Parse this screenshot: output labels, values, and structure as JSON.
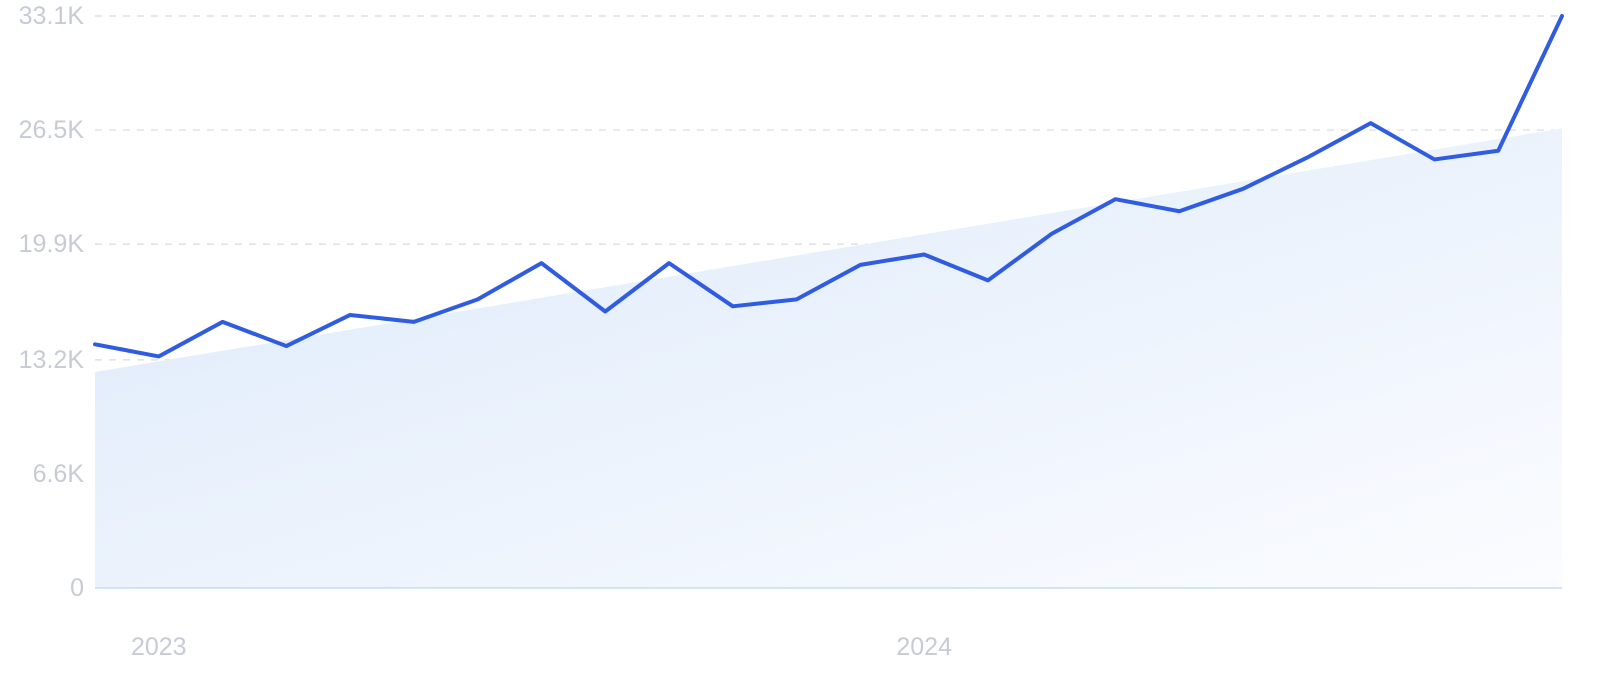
{
  "chart_data": {
    "type": "line",
    "title": "",
    "xlabel": "",
    "ylabel": "",
    "ylim": [
      0,
      33100
    ],
    "yticks": [
      "0",
      "6.6K",
      "13.2K",
      "19.9K",
      "26.5K",
      "33.1K"
    ],
    "ytick_values": [
      0,
      6600,
      13200,
      19900,
      26500,
      33100
    ],
    "xtick_labels": [
      {
        "label": "2023",
        "index": 1
      },
      {
        "label": "2024",
        "index": 13
      }
    ],
    "grid": true,
    "colors": {
      "line": "#2f5ce0",
      "area_start": "#dce9fa",
      "area_end": "#fbfcff",
      "grid": "#d6dbe4",
      "tick_text": "#c7cbd3"
    },
    "series": [
      {
        "values": [
          14100,
          13400,
          15400,
          14000,
          15800,
          15400,
          16700,
          18800,
          16000,
          18800,
          16300,
          16700,
          18700,
          19300,
          17800,
          20500,
          22500,
          21800,
          23100,
          24900,
          26900,
          24800,
          25300,
          33100
        ]
      }
    ],
    "trend": {
      "start": 12500,
      "end": 26600
    }
  }
}
